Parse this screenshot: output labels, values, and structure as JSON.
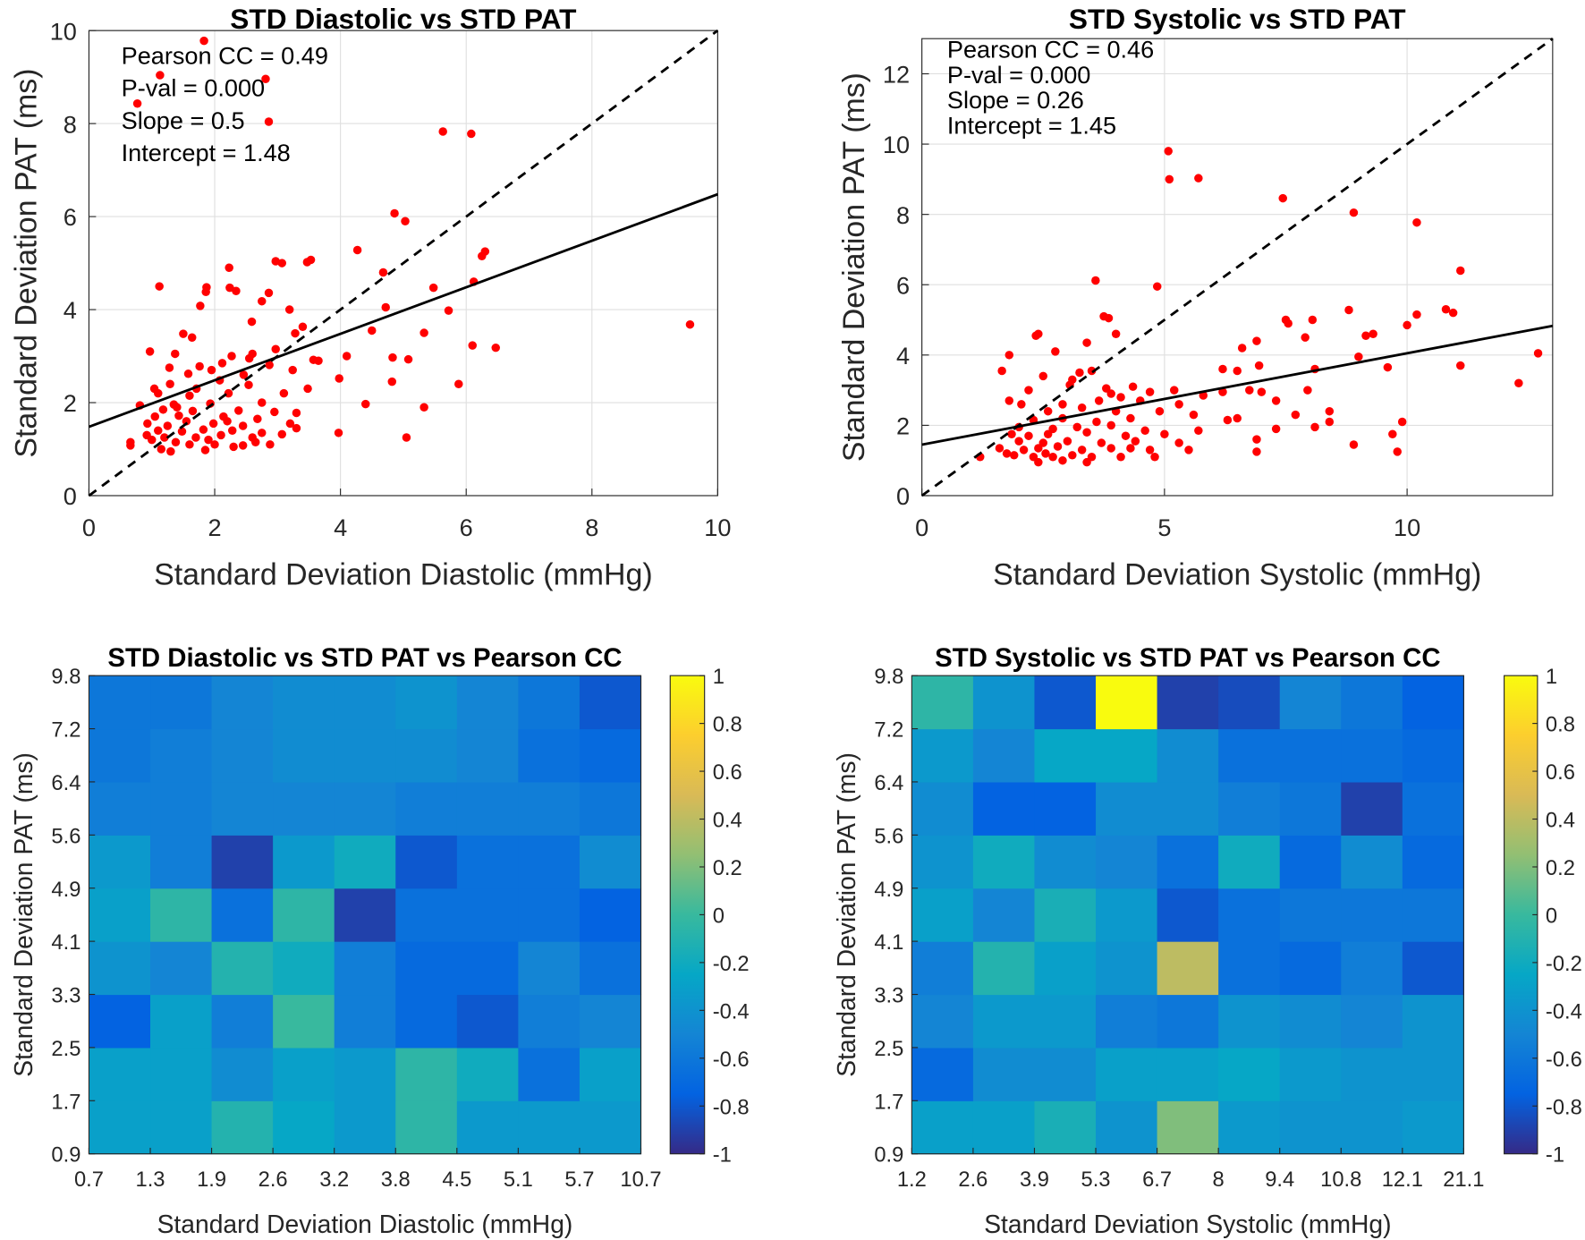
{
  "chart_data": [
    {
      "type": "scatter",
      "title": "STD Diastolic vs STD PAT",
      "xlabel": "Standard Deviation Diastolic (mmHg)",
      "ylabel": "Standard Deviation PAT (ms)",
      "annotations": [
        "Pearson CC = 0.49",
        "P-val = 0.000",
        "Slope = 0.5",
        "Intercept = 1.48"
      ],
      "xlim": [
        0,
        10
      ],
      "ylim": [
        0,
        10
      ],
      "xticks": [
        0,
        2,
        4,
        6,
        8,
        10
      ],
      "yticks": [
        0,
        2,
        4,
        6,
        8,
        10
      ],
      "grid": true,
      "color": "#ff0000",
      "x": [
        1.83,
        1.13,
        2.81,
        0.77,
        2.86,
        5.63,
        6.08,
        4.86,
        5.03,
        4.27,
        3.53,
        3.47,
        2.97,
        3.07,
        6.3,
        6.25,
        2.23,
        4.68,
        5.48,
        6.12,
        1.12,
        1.87,
        1.86,
        2.24,
        2.34,
        2.86,
        4.72,
        5.72,
        1.77,
        3.19,
        2.75,
        9.56,
        5.33,
        4.5,
        3.4,
        1.5,
        1.64,
        2.59,
        3.28,
        6.1,
        6.47,
        2.97,
        0.97,
        1.37,
        2.27,
        4.1,
        4.83,
        5.08,
        3.57,
        2.55,
        1.76,
        2.12,
        2.87,
        1.28,
        1.58,
        1.95,
        2.46,
        3.24,
        2.08,
        3.98,
        4.82,
        5.88,
        1.04,
        1.29,
        1.71,
        2.54,
        3.48,
        1.1,
        1.6,
        2.22,
        3.1,
        0.81,
        1.35,
        1.93,
        2.75,
        4.4,
        5.33,
        1.18,
        1.65,
        2.38,
        2.95,
        3.3,
        1.05,
        1.43,
        2.14,
        2.68,
        0.93,
        1.25,
        1.55,
        1.98,
        2.45,
        3.2,
        1.1,
        1.48,
        1.82,
        2.28,
        2.75,
        3.07,
        3.97,
        0.92,
        1.2,
        1.7,
        2.1,
        2.6,
        3.3,
        5.05,
        0.66,
        1.0,
        1.38,
        1.6,
        2.0,
        2.45,
        2.88,
        0.66,
        1.15,
        1.3,
        1.85,
        2.3,
        2.65,
        1.9,
        2.2,
        1.4,
        3.65,
        2.6
      ],
      "y": [
        9.78,
        9.04,
        8.96,
        8.43,
        8.04,
        7.83,
        7.78,
        6.07,
        5.9,
        5.28,
        5.07,
        5.02,
        5.04,
        5.0,
        5.25,
        5.15,
        4.9,
        4.8,
        4.47,
        4.6,
        4.5,
        4.48,
        4.38,
        4.47,
        4.4,
        4.36,
        4.05,
        3.98,
        4.08,
        4.0,
        4.18,
        3.68,
        3.5,
        3.55,
        3.63,
        3.48,
        3.4,
        3.74,
        3.49,
        3.23,
        3.18,
        3.15,
        3.1,
        3.05,
        3.0,
        3.0,
        2.97,
        2.93,
        2.92,
        2.95,
        2.78,
        2.85,
        2.81,
        2.75,
        2.62,
        2.7,
        2.6,
        2.7,
        2.48,
        2.52,
        2.45,
        2.4,
        2.3,
        2.4,
        2.3,
        2.38,
        2.3,
        2.2,
        2.15,
        2.2,
        2.2,
        1.94,
        1.96,
        1.98,
        2.0,
        1.97,
        1.9,
        1.85,
        1.82,
        1.83,
        1.8,
        1.78,
        1.7,
        1.72,
        1.7,
        1.65,
        1.55,
        1.5,
        1.6,
        1.55,
        1.5,
        1.55,
        1.4,
        1.38,
        1.42,
        1.4,
        1.35,
        1.32,
        1.35,
        1.3,
        1.25,
        1.25,
        1.3,
        1.25,
        1.45,
        1.25,
        1.15,
        1.2,
        1.15,
        1.1,
        1.1,
        1.08,
        1.1,
        1.08,
        1.0,
        0.95,
        0.98,
        1.05,
        1.15,
        1.2,
        1.6,
        1.9,
        2.9,
        3.05
      ],
      "lines": [
        {
          "style": "dashed",
          "x": [
            0,
            10
          ],
          "y": [
            0,
            10
          ]
        },
        {
          "style": "solid",
          "x": [
            0,
            10
          ],
          "y": [
            1.48,
            6.48
          ]
        }
      ]
    },
    {
      "type": "scatter",
      "title": "STD Systolic vs STD PAT",
      "xlabel": "Standard Deviation Systolic (mmHg)",
      "ylabel": "Standard Deviation PAT (ms)",
      "annotations": [
        "Pearson CC = 0.46",
        "P-val = 0.000",
        "Slope = 0.26",
        "Intercept = 1.45"
      ],
      "xlim": [
        0,
        13
      ],
      "ylim": [
        0,
        13
      ],
      "xticks": [
        0,
        5,
        10
      ],
      "yticks": [
        0,
        2,
        4,
        6,
        8,
        10,
        12
      ],
      "grid": true,
      "color": "#ff0000",
      "x": [
        5.08,
        5.1,
        5.7,
        7.44,
        8.9,
        10.2,
        3.58,
        11.1,
        4.85,
        8.8,
        10.8,
        10.95,
        10.2,
        3.75,
        3.85,
        7.5,
        7.55,
        8.05,
        2.35,
        2.4,
        10.0,
        9.3,
        9.15,
        4.0,
        6.6,
        6.9,
        3.4,
        7.9,
        1.8,
        2.75,
        9.0,
        11.1,
        12.7,
        1.65,
        3.25,
        3.5,
        6.2,
        6.5,
        6.95,
        8.1,
        9.6,
        2.5,
        3.1,
        3.05,
        4.35,
        4.7,
        5.2,
        6.75,
        7.0,
        7.95,
        12.3,
        2.2,
        3.8,
        3.9,
        4.1,
        5.8,
        6.2,
        1.8,
        2.05,
        2.9,
        3.65,
        4.5,
        5.3,
        7.3,
        8.4,
        2.6,
        3.3,
        4.0,
        4.9,
        5.6,
        6.5,
        7.7,
        2.3,
        2.9,
        3.6,
        4.3,
        6.3,
        9.9,
        8.4,
        2.0,
        2.7,
        3.2,
        3.9,
        4.6,
        5.7,
        7.3,
        8.1,
        1.85,
        2.2,
        2.6,
        3.4,
        4.2,
        5.0,
        6.9,
        9.7,
        2.0,
        2.5,
        3.0,
        3.7,
        4.4,
        5.3,
        8.9,
        1.6,
        2.1,
        2.4,
        2.8,
        3.3,
        3.9,
        4.7,
        5.5,
        6.9,
        9.8,
        1.2,
        1.9,
        2.3,
        2.7,
        3.1,
        3.5,
        4.1,
        4.8,
        2.4,
        3.4,
        2.9,
        1.75,
        2.55,
        4.3
      ],
      "y": [
        9.8,
        9.0,
        9.03,
        8.46,
        8.05,
        7.77,
        6.12,
        6.4,
        5.95,
        5.28,
        5.3,
        5.2,
        5.15,
        5.1,
        5.05,
        5.0,
        4.9,
        5.0,
        4.55,
        4.6,
        4.85,
        4.6,
        4.55,
        4.6,
        4.2,
        4.4,
        4.35,
        4.5,
        4.0,
        4.1,
        3.95,
        3.7,
        4.05,
        3.55,
        3.5,
        3.55,
        3.6,
        3.55,
        3.7,
        3.6,
        3.65,
        3.4,
        3.3,
        3.15,
        3.1,
        2.95,
        3.0,
        3.0,
        2.95,
        3.0,
        3.2,
        3.0,
        3.05,
        2.9,
        2.8,
        2.85,
        2.95,
        2.7,
        2.6,
        2.6,
        2.7,
        2.7,
        2.6,
        2.7,
        2.4,
        2.4,
        2.5,
        2.4,
        2.4,
        2.3,
        2.2,
        2.3,
        2.15,
        2.2,
        2.1,
        2.2,
        2.15,
        2.1,
        2.1,
        1.95,
        1.9,
        1.95,
        2.0,
        1.85,
        1.85,
        1.9,
        1.95,
        1.75,
        1.7,
        1.75,
        1.8,
        1.7,
        1.75,
        1.6,
        1.75,
        1.55,
        1.5,
        1.55,
        1.5,
        1.55,
        1.5,
        1.45,
        1.35,
        1.3,
        1.35,
        1.4,
        1.3,
        1.35,
        1.3,
        1.3,
        1.25,
        1.25,
        1.1,
        1.15,
        1.1,
        1.1,
        1.15,
        1.1,
        1.1,
        1.1,
        0.95,
        0.95,
        1.0,
        1.2,
        1.2,
        1.35
      ],
      "lines": [
        {
          "style": "dashed",
          "x": [
            0,
            13
          ],
          "y": [
            0,
            13
          ]
        },
        {
          "style": "solid",
          "x": [
            0,
            13
          ],
          "y": [
            1.45,
            4.83
          ]
        }
      ]
    },
    {
      "type": "heatmap",
      "title": "STD Diastolic vs STD PAT vs Pearson CC",
      "xlabel": "Standard Deviation Diastolic (mmHg)",
      "ylabel": "Standard Deviation PAT (ms)",
      "x_bins": [
        0.7,
        1.3,
        1.9,
        2.6,
        3.2,
        3.8,
        4.5,
        5.1,
        5.7,
        10.7
      ],
      "y_bins": [
        0.9,
        1.7,
        2.5,
        3.3,
        4.1,
        4.9,
        5.6,
        6.4,
        7.2,
        9.8
      ],
      "colormap": "parula",
      "clim": [
        -1,
        1
      ],
      "cticks": [
        -1,
        -0.8,
        -0.6,
        -0.4,
        -0.2,
        0,
        0.2,
        0.4,
        0.6,
        0.8,
        1
      ],
      "z": [
        [
          -0.3,
          -0.3,
          -0.1,
          -0.25,
          -0.35,
          -0.05,
          -0.35,
          -0.35,
          -0.35
        ],
        [
          -0.3,
          -0.3,
          -0.45,
          -0.3,
          -0.35,
          -0.05,
          -0.2,
          -0.65,
          -0.3
        ],
        [
          -0.75,
          -0.3,
          -0.55,
          0.0,
          -0.55,
          -0.7,
          -0.8,
          -0.55,
          -0.5
        ],
        [
          -0.4,
          -0.5,
          -0.1,
          -0.2,
          -0.55,
          -0.7,
          -0.7,
          -0.5,
          -0.65
        ],
        [
          -0.3,
          -0.05,
          -0.65,
          -0.05,
          -0.9,
          -0.65,
          -0.65,
          -0.65,
          -0.75
        ],
        [
          -0.35,
          -0.55,
          -0.9,
          -0.35,
          -0.2,
          -0.8,
          -0.65,
          -0.65,
          -0.45
        ],
        [
          -0.55,
          -0.55,
          -0.5,
          -0.5,
          -0.5,
          -0.55,
          -0.55,
          -0.55,
          -0.6
        ],
        [
          -0.6,
          -0.55,
          -0.5,
          -0.45,
          -0.45,
          -0.45,
          -0.5,
          -0.65,
          -0.7
        ],
        [
          -0.6,
          -0.6,
          -0.5,
          -0.45,
          -0.45,
          -0.4,
          -0.5,
          -0.6,
          -0.8
        ]
      ]
    },
    {
      "type": "heatmap",
      "title": "STD Systolic vs STD PAT vs Pearson CC",
      "xlabel": "Standard Deviation Systolic (mmHg)",
      "ylabel": "Standard Deviation PAT (ms)",
      "x_bins": [
        1.2,
        2.6,
        3.9,
        5.3,
        6.7,
        8,
        9.4,
        10.8,
        12.1,
        21.1
      ],
      "y_bins": [
        0.9,
        1.7,
        2.5,
        3.3,
        4.1,
        4.9,
        5.6,
        6.4,
        7.2,
        9.8
      ],
      "colormap": "parula",
      "clim": [
        -1,
        1
      ],
      "cticks": [
        -1,
        -0.8,
        -0.6,
        -0.4,
        -0.2,
        0,
        0.2,
        0.4,
        0.6,
        0.8,
        1
      ],
      "z": [
        [
          -0.3,
          -0.3,
          -0.15,
          -0.4,
          0.2,
          -0.35,
          -0.4,
          -0.4,
          -0.35
        ],
        [
          -0.7,
          -0.45,
          -0.45,
          -0.3,
          -0.3,
          -0.25,
          -0.35,
          -0.4,
          -0.4
        ],
        [
          -0.5,
          -0.35,
          -0.35,
          -0.55,
          -0.6,
          -0.4,
          -0.45,
          -0.5,
          -0.4
        ],
        [
          -0.55,
          -0.1,
          -0.3,
          -0.4,
          0.4,
          -0.65,
          -0.7,
          -0.55,
          -0.8
        ],
        [
          -0.3,
          -0.5,
          -0.15,
          -0.35,
          -0.8,
          -0.65,
          -0.6,
          -0.6,
          -0.6
        ],
        [
          -0.4,
          -0.2,
          -0.45,
          -0.5,
          -0.65,
          -0.2,
          -0.7,
          -0.45,
          -0.7
        ],
        [
          -0.45,
          -0.75,
          -0.75,
          -0.45,
          -0.45,
          -0.55,
          -0.6,
          -0.9,
          -0.65
        ],
        [
          -0.35,
          -0.5,
          -0.25,
          -0.25,
          -0.45,
          -0.65,
          -0.65,
          -0.65,
          -0.7
        ],
        [
          -0.05,
          -0.4,
          -0.8,
          1.0,
          -0.9,
          -0.85,
          -0.5,
          -0.6,
          -0.75
        ]
      ]
    }
  ]
}
